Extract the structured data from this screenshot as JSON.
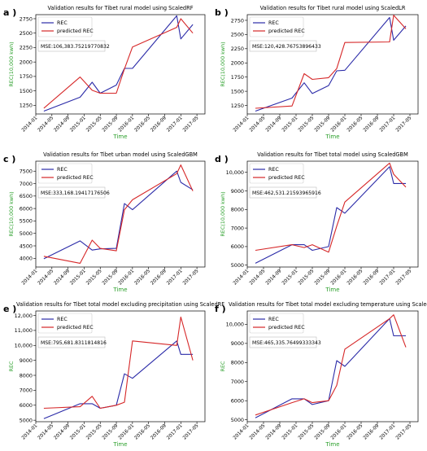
{
  "panels": [
    {
      "letter": "a )",
      "title": "Validation results for Tibet rural model using ScaledRF",
      "mse": "MSE:106,383.75219770832",
      "ylabel": "REC(10,000 kwh)",
      "xlabel": "Time",
      "legend": [
        "REC",
        "predicted REC"
      ],
      "yticks": [
        "1250",
        "1500",
        "1750",
        "2000",
        "2250",
        "2500",
        "2750"
      ],
      "xticks": [
        "2014-01",
        "2014-05",
        "2014-09",
        "2015-01",
        "2015-05",
        "2015-09",
        "2016-01",
        "2016-05",
        "2016-09",
        "2017-01",
        "2017-05"
      ]
    },
    {
      "letter": "b )",
      "title": "Validation results for Tibet rural model using ScaledLR",
      "mse": "MSE:120,428.76753896433",
      "ylabel": "REC(10,000 kwh)",
      "xlabel": "Time",
      "legend": [
        "REC",
        "predicted REC"
      ],
      "yticks": [
        "1250",
        "1500",
        "1750",
        "2000",
        "2250",
        "2500",
        "2750"
      ],
      "xticks": [
        "2014-01",
        "2014-05",
        "2014-09",
        "2015-01",
        "2015-05",
        "2015-09",
        "2016-01",
        "2016-05",
        "2016-09",
        "2017-01",
        "2017-05"
      ]
    },
    {
      "letter": "c )",
      "title": "Validation results for Tibet urban model using ScaledGBM",
      "mse": "MSE:333,168.19417176506",
      "ylabel": "REC(10,000 kwh)",
      "xlabel": "Time",
      "legend": [
        "REC",
        "predicted REC"
      ],
      "yticks": [
        "4000",
        "4500",
        "5000",
        "5500",
        "6000",
        "6500",
        "7000",
        "7500"
      ],
      "xticks": [
        "2014-01",
        "2014-05",
        "2014-09",
        "2015-01",
        "2015-05",
        "2015-09",
        "2016-01",
        "2016-05",
        "2016-09",
        "2017-01",
        "2017-05"
      ]
    },
    {
      "letter": "d )",
      "title": "Validation results for Tibet total model using ScaledGBM",
      "mse": "MSE:462,531.21593965916",
      "ylabel": "REC(10,000 kwh)",
      "xlabel": "Time",
      "legend": [
        "REC",
        "predicted REC"
      ],
      "yticks": [
        "5000",
        "6000",
        "7000",
        "8000",
        "9000",
        "10,000"
      ],
      "xticks": [
        "2014-01",
        "2014-05",
        "2014-09",
        "2015-01",
        "2015-05",
        "2015-09",
        "2016-01",
        "2016-05",
        "2016-09",
        "2017-01",
        "2017-05"
      ]
    },
    {
      "letter": "e )",
      "title": "Validation results for Tibet total model excluding precipitation using ScaledRF",
      "mse": "MSE:795,681.8311814816",
      "ylabel": "REC",
      "xlabel": "Time",
      "legend": [
        "REC",
        "predicted REC"
      ],
      "yticks": [
        "5000",
        "6000",
        "7000",
        "8000",
        "9000",
        "10,000",
        "11,000",
        "12,000"
      ],
      "xticks": [
        "2014-01",
        "2014-05",
        "2014-09",
        "2015-01",
        "2015-05",
        "2015-09",
        "2016-01",
        "2016-05",
        "2016-09",
        "2017-01",
        "2017-05"
      ]
    },
    {
      "letter": "f )",
      "title": "Validation results for Tibet total model excluding temperature using ScaledRF",
      "mse": "MSE:465,335.76499333343",
      "ylabel": "REC",
      "xlabel": "Time",
      "legend": [
        "REC",
        "predicted REC"
      ],
      "yticks": [
        "5000",
        "6000",
        "7000",
        "8000",
        "9000",
        "10,000"
      ],
      "xticks": [
        "2014-01",
        "2014-05",
        "2014-09",
        "2015-01",
        "2015-05",
        "2015-09",
        "2016-01",
        "2016-05",
        "2016-09",
        "2017-01",
        "2017-05"
      ]
    }
  ],
  "colors": {
    "rec": "#2b2ba8",
    "pred": "#d62728",
    "axis_label": "#2ca02c"
  },
  "chart_data": [
    {
      "type": "line",
      "title": "Validation results for Tibet rural model using ScaledRF",
      "xlabel": "Time",
      "ylabel": "REC(10,000 kwh)",
      "xlim": [
        "2014-01",
        "2017-07"
      ],
      "ylim": [
        1100,
        2820
      ],
      "legend_position": "top-left",
      "series": [
        {
          "name": "REC",
          "x": [
            "2014-03",
            "2014-12",
            "2015-03",
            "2015-05",
            "2015-09",
            "2015-11",
            "2016-01",
            "2016-12",
            "2017-01",
            "2017-04"
          ],
          "values": [
            1150,
            1390,
            1650,
            1460,
            1600,
            1890,
            1890,
            2800,
            2400,
            2650
          ]
        },
        {
          "name": "predicted REC",
          "x": [
            "2014-03",
            "2014-12",
            "2015-03",
            "2015-05",
            "2015-09",
            "2015-11",
            "2016-01",
            "2016-12",
            "2017-01",
            "2017-04"
          ],
          "values": [
            1200,
            1740,
            1510,
            1460,
            1460,
            1880,
            2260,
            2600,
            2750,
            2500
          ]
        }
      ]
    },
    {
      "type": "line",
      "title": "Validation results for Tibet rural model using ScaledLR",
      "xlabel": "Time",
      "ylabel": "REC(10,000 kwh)",
      "xlim": [
        "2014-01",
        "2017-07"
      ],
      "ylim": [
        1100,
        2850
      ],
      "legend_position": "top-left",
      "series": [
        {
          "name": "REC",
          "x": [
            "2014-03",
            "2014-12",
            "2015-03",
            "2015-05",
            "2015-09",
            "2015-11",
            "2016-01",
            "2016-12",
            "2017-01",
            "2017-04"
          ],
          "values": [
            1150,
            1380,
            1650,
            1460,
            1600,
            1860,
            1870,
            2800,
            2400,
            2650
          ]
        },
        {
          "name": "predicted REC",
          "x": [
            "2014-03",
            "2014-12",
            "2015-03",
            "2015-05",
            "2015-09",
            "2015-11",
            "2016-01",
            "2016-12",
            "2017-01",
            "2017-04"
          ],
          "values": [
            1200,
            1240,
            1810,
            1710,
            1740,
            1900,
            2360,
            2370,
            2840,
            2600
          ]
        }
      ]
    },
    {
      "type": "line",
      "title": "Validation results for Tibet urban model using ScaledGBM",
      "xlabel": "Time",
      "ylabel": "REC(10,000 kwh)",
      "xlim": [
        "2014-01",
        "2017-07"
      ],
      "ylim": [
        3650,
        7900
      ],
      "legend_position": "top-left",
      "series": [
        {
          "name": "REC",
          "x": [
            "2014-03",
            "2014-12",
            "2015-03",
            "2015-05",
            "2015-09",
            "2015-11",
            "2016-01",
            "2016-12",
            "2017-01",
            "2017-04"
          ],
          "values": [
            3980,
            4700,
            4330,
            4380,
            4400,
            6200,
            5950,
            7500,
            7050,
            6750
          ]
        },
        {
          "name": "predicted REC",
          "x": [
            "2014-03",
            "2014-12",
            "2015-03",
            "2015-05",
            "2015-09",
            "2015-11",
            "2016-01",
            "2016-12",
            "2017-01",
            "2017-04"
          ],
          "values": [
            4080,
            3800,
            4730,
            4400,
            4300,
            5950,
            6350,
            7400,
            7750,
            6700
          ]
        }
      ]
    },
    {
      "type": "line",
      "title": "Validation results for Tibet total model using ScaledGBM",
      "xlabel": "Time",
      "ylabel": "REC(10,000 kwh)",
      "xlim": [
        "2014-01",
        "2017-07"
      ],
      "ylim": [
        4900,
        10600
      ],
      "legend_position": "top-left",
      "series": [
        {
          "name": "REC",
          "x": [
            "2014-03",
            "2014-12",
            "2015-03",
            "2015-05",
            "2015-09",
            "2015-11",
            "2016-01",
            "2016-12",
            "2017-01",
            "2017-04"
          ],
          "values": [
            5100,
            6100,
            6100,
            5800,
            6000,
            8100,
            7800,
            10300,
            9400,
            9400
          ]
        },
        {
          "name": "predicted REC",
          "x": [
            "2014-03",
            "2014-12",
            "2015-03",
            "2015-05",
            "2015-09",
            "2015-11",
            "2016-01",
            "2016-12",
            "2017-01",
            "2017-04"
          ],
          "values": [
            5800,
            6100,
            5950,
            6100,
            5700,
            7100,
            8400,
            10500,
            9900,
            9200
          ]
        }
      ]
    },
    {
      "type": "line",
      "title": "Validation results for Tibet total model excluding precipitation using ScaledRF",
      "xlabel": "Time",
      "ylabel": "REC",
      "xlim": [
        "2014-01",
        "2017-07"
      ],
      "ylim": [
        4900,
        12300
      ],
      "legend_position": "top-left",
      "series": [
        {
          "name": "REC",
          "x": [
            "2014-03",
            "2014-12",
            "2015-03",
            "2015-05",
            "2015-09",
            "2015-11",
            "2016-01",
            "2016-12",
            "2017-01",
            "2017-04"
          ],
          "values": [
            5100,
            6100,
            6100,
            5800,
            6000,
            8100,
            7800,
            10300,
            9400,
            9400
          ]
        },
        {
          "name": "predicted REC",
          "x": [
            "2014-03",
            "2014-12",
            "2015-03",
            "2015-05",
            "2015-09",
            "2015-11",
            "2016-01",
            "2016-12",
            "2017-01",
            "2017-04"
          ],
          "values": [
            5800,
            5900,
            6600,
            5800,
            6000,
            6200,
            10300,
            10000,
            11900,
            9000
          ]
        }
      ]
    },
    {
      "type": "line",
      "title": "Validation results for Tibet total model excluding temperature using ScaledRF",
      "xlabel": "Time",
      "ylabel": "REC",
      "xlim": [
        "2014-01",
        "2017-07"
      ],
      "ylim": [
        4900,
        10700
      ],
      "legend_position": "top-left",
      "series": [
        {
          "name": "REC",
          "x": [
            "2014-03",
            "2014-12",
            "2015-03",
            "2015-05",
            "2015-09",
            "2015-11",
            "2016-01",
            "2016-12",
            "2017-01",
            "2017-04"
          ],
          "values": [
            5100,
            6100,
            6100,
            5800,
            6000,
            8100,
            7800,
            10300,
            9400,
            9400
          ]
        },
        {
          "name": "predicted REC",
          "x": [
            "2014-03",
            "2014-12",
            "2015-03",
            "2015-05",
            "2015-09",
            "2015-11",
            "2016-01",
            "2016-12",
            "2017-01",
            "2017-04"
          ],
          "values": [
            5250,
            5900,
            6100,
            5900,
            6000,
            6800,
            8700,
            10300,
            10500,
            8800
          ]
        }
      ]
    }
  ]
}
